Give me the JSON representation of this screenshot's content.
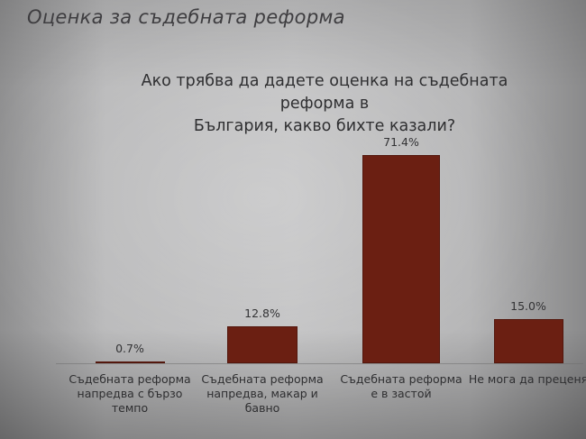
{
  "slide": {
    "title": "Оценка за съдебната реформа"
  },
  "chart_data": {
    "type": "bar",
    "title": "Ако трябва да дадете оценка на съдебната реформа в България, какво бихте казали?",
    "title_lines": [
      "Ако трябва да дадете оценка на съдебната реформа в",
      "България, какво бихте казали?"
    ],
    "categories": [
      "Съдебната реформа напредва с бързо темпо",
      "Съдебната реформа напредва, макар и бавно",
      "Съдебната реформа е в застой",
      "Не мога да преценя"
    ],
    "category_lines": [
      [
        "Съдебната реформа",
        "напредва с бързо",
        "темпо"
      ],
      [
        "Съдебната реформа",
        "напредва, макар и",
        "бавно"
      ],
      [
        "Съдебната реформа",
        "е в застой"
      ],
      [
        "Не мога да преценя"
      ]
    ],
    "values": [
      0.7,
      12.8,
      71.4,
      15.0
    ],
    "value_labels": [
      "0.7%",
      "12.8%",
      "71.4%",
      "15.0%"
    ],
    "unit": "%",
    "xlabel": "",
    "ylabel": "",
    "ylim": [
      0,
      80
    ],
    "grid": false,
    "legend": "none",
    "bar_color": "#6b1f12"
  }
}
